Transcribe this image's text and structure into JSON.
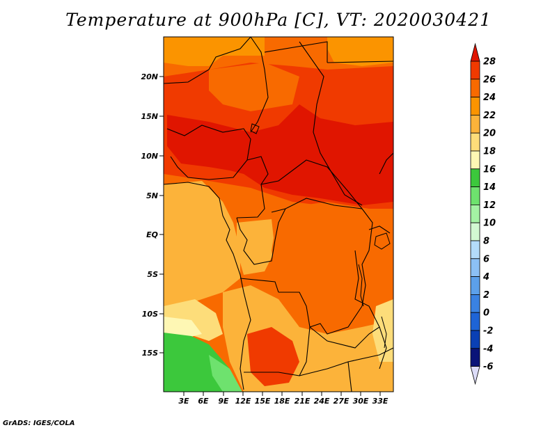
{
  "title": "Temperature at 900hPa [C], VT: 2020030421",
  "credit": "GrADS: IGES/COLA",
  "map": {
    "lat_labels": [
      "20N",
      "15N",
      "10N",
      "5N",
      "EQ",
      "5S",
      "10S",
      "15S"
    ],
    "lon_labels": [
      "3E",
      "6E",
      "9E",
      "12E",
      "15E",
      "18E",
      "21E",
      "24E",
      "27E",
      "30E",
      "33E"
    ]
  },
  "colorbar": {
    "levels": [
      "28",
      "26",
      "24",
      "22",
      "20",
      "18",
      "16",
      "14",
      "12",
      "10",
      "8",
      "6",
      "4",
      "2",
      "0",
      "-2",
      "-4",
      "-6"
    ],
    "colors": [
      "#e01500",
      "#f03a00",
      "#f86a00",
      "#fb9400",
      "#fcb33a",
      "#fddd7a",
      "#fef7b4",
      "#3cc83c",
      "#6ee26e",
      "#a4f2a4",
      "#d2f8d2",
      "#b4dcfa",
      "#8cc0f4",
      "#5ca0ea",
      "#3a82e2",
      "#1e64d6",
      "#0a40b4",
      "#0a1478",
      "#dcdcf8"
    ]
  }
}
